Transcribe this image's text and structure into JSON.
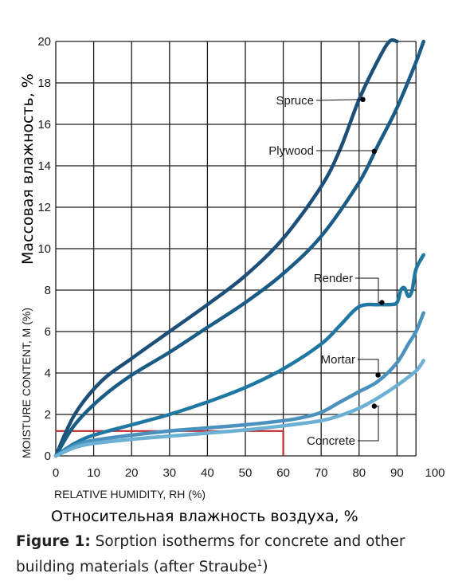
{
  "chart_data": {
    "type": "line",
    "xlabel": "RELATIVE HUMIDITY, RH (%)",
    "ylabel": "MOISTURE CONTENT, M (%)",
    "xlabel_ru": "Относительная влажность воздуха, %",
    "ylabel_ru": "Массовая влажность, %",
    "xlim": [
      0,
      100
    ],
    "ylim": [
      0,
      20
    ],
    "xticks": [
      0,
      10,
      20,
      30,
      40,
      50,
      60,
      70,
      80,
      90,
      100
    ],
    "yticks": [
      0,
      2,
      4,
      6,
      8,
      10,
      12,
      14,
      16,
      18,
      20
    ],
    "grid": true,
    "series": [
      {
        "name": "Spruce",
        "color": "#1d4f78",
        "x": [
          0,
          5,
          12,
          20,
          30,
          40,
          50,
          60,
          70,
          75,
          80,
          85,
          88,
          90
        ],
        "y": [
          0,
          2,
          3.6,
          4.7,
          6,
          7.3,
          8.7,
          10.5,
          13,
          14.8,
          17.2,
          19.1,
          20,
          20
        ]
      },
      {
        "name": "Plywood",
        "color": "#1a5c86",
        "x": [
          0,
          5,
          12,
          20,
          30,
          40,
          50,
          60,
          70,
          80,
          85,
          90,
          95,
          97
        ],
        "y": [
          0,
          1.5,
          2.8,
          3.9,
          5,
          6.2,
          7.4,
          8.8,
          10.6,
          13.2,
          15,
          16.8,
          19,
          20
        ]
      },
      {
        "name": "Render",
        "color": "#1f78a2",
        "x": [
          0,
          5,
          10,
          20,
          30,
          40,
          50,
          60,
          70,
          75,
          80,
          85,
          88,
          90,
          91,
          92,
          93,
          94,
          95,
          97
        ],
        "y": [
          0,
          0.6,
          1,
          1.5,
          2,
          2.6,
          3.3,
          4.2,
          5.4,
          6.3,
          7.2,
          7.3,
          7.3,
          7.4,
          8,
          8.1,
          7.7,
          8,
          9,
          9.7
        ]
      },
      {
        "name": "Mortar",
        "color": "#4a92bd",
        "x": [
          0,
          5,
          10,
          20,
          30,
          40,
          50,
          60,
          65,
          70,
          75,
          80,
          85,
          90,
          93,
          95,
          97
        ],
        "y": [
          0,
          0.5,
          0.75,
          1,
          1.2,
          1.35,
          1.5,
          1.7,
          1.85,
          2.1,
          2.6,
          3.1,
          3.6,
          4.5,
          5.4,
          6,
          6.9
        ]
      },
      {
        "name": "Concrete",
        "color": "#6cb1d4",
        "x": [
          0,
          5,
          10,
          20,
          30,
          40,
          50,
          60,
          70,
          75,
          80,
          85,
          90,
          95,
          97
        ],
        "y": [
          0,
          0.4,
          0.6,
          0.8,
          0.95,
          1.1,
          1.25,
          1.45,
          1.7,
          1.95,
          2.3,
          2.8,
          3.4,
          4.1,
          4.6
        ]
      }
    ],
    "label_markers": [
      {
        "label": "Spruce",
        "x": 81,
        "y": 17.2
      },
      {
        "label": "Plywood",
        "x": 84,
        "y": 14.7
      },
      {
        "label": "Render",
        "x": 86,
        "y": 7.4
      },
      {
        "label": "Mortar",
        "x": 85,
        "y": 3.9
      },
      {
        "label": "Concrete",
        "x": 84,
        "y": 2.4
      }
    ],
    "highlight": {
      "color": "#c0282d",
      "y": 1.2,
      "x": 60
    }
  },
  "caption": {
    "prefix": "Figure 1:",
    "text": "Sorption isotherms for concrete and other building materials (after Straube",
    "superscript": "1",
    "suffix": ")"
  }
}
